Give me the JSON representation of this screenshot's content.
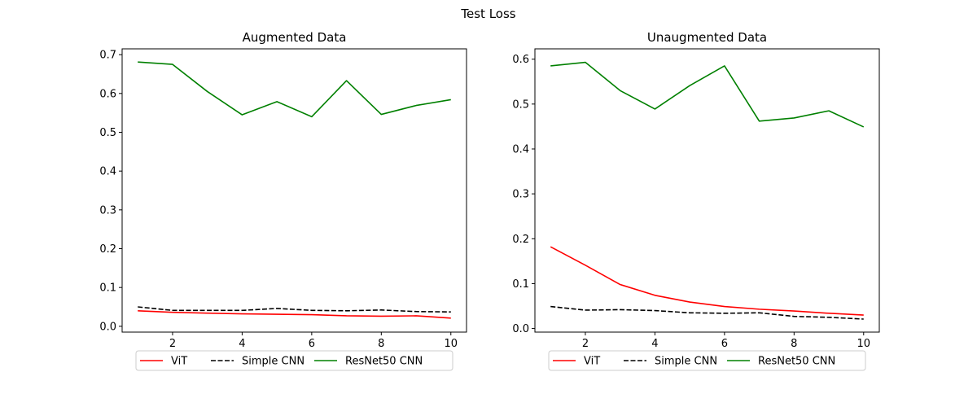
{
  "figure": {
    "suptitle": "Test Loss"
  },
  "chart_data": [
    {
      "type": "line",
      "title": "Augmented Data",
      "xlabel": "",
      "ylabel": "",
      "x": [
        1,
        2,
        3,
        4,
        5,
        6,
        7,
        8,
        9,
        10
      ],
      "xlim": [
        0.55,
        10.45
      ],
      "ylim": [
        -0.015,
        0.715
      ],
      "xticks": [
        2,
        4,
        6,
        8,
        10
      ],
      "yticks": [
        0.0,
        0.1,
        0.2,
        0.3,
        0.4,
        0.5,
        0.6,
        0.7
      ],
      "grid": false,
      "legend": "lower-center-outside",
      "series": [
        {
          "name": "ViT",
          "color": "#ff0000",
          "style": "solid",
          "values": [
            0.04,
            0.036,
            0.034,
            0.032,
            0.031,
            0.03,
            0.027,
            0.026,
            0.027,
            0.021
          ]
        },
        {
          "name": "Simple CNN",
          "color": "#000000",
          "style": "dashed",
          "values": [
            0.05,
            0.041,
            0.041,
            0.041,
            0.046,
            0.041,
            0.04,
            0.042,
            0.038,
            0.037
          ]
        },
        {
          "name": "ResNet50 CNN",
          "color": "#008000",
          "style": "solid",
          "values": [
            0.681,
            0.675,
            0.605,
            0.545,
            0.579,
            0.54,
            0.633,
            0.546,
            0.569,
            0.584
          ]
        }
      ]
    },
    {
      "type": "line",
      "title": "Unaugmented Data",
      "xlabel": "",
      "ylabel": "",
      "x": [
        1,
        2,
        3,
        4,
        5,
        6,
        7,
        8,
        9,
        10
      ],
      "xlim": [
        0.55,
        10.45
      ],
      "ylim": [
        -0.008,
        0.623
      ],
      "xticks": [
        2,
        4,
        6,
        8,
        10
      ],
      "yticks": [
        0.0,
        0.1,
        0.2,
        0.3,
        0.4,
        0.5,
        0.6
      ],
      "grid": false,
      "legend": "lower-center-outside",
      "series": [
        {
          "name": "ViT",
          "color": "#ff0000",
          "style": "solid",
          "values": [
            0.182,
            0.141,
            0.098,
            0.074,
            0.059,
            0.049,
            0.043,
            0.039,
            0.034,
            0.03
          ]
        },
        {
          "name": "Simple CNN",
          "color": "#000000",
          "style": "dashed",
          "values": [
            0.049,
            0.041,
            0.042,
            0.04,
            0.035,
            0.034,
            0.035,
            0.027,
            0.025,
            0.021
          ]
        },
        {
          "name": "ResNet50 CNN",
          "color": "#008000",
          "style": "solid",
          "values": [
            0.585,
            0.593,
            0.53,
            0.489,
            0.541,
            0.585,
            0.462,
            0.469,
            0.485,
            0.449
          ]
        }
      ]
    }
  ]
}
